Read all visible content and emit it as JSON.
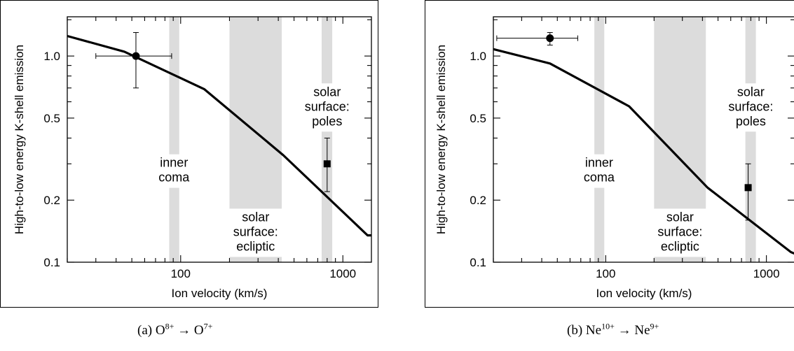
{
  "chart_data": [
    {
      "type": "line",
      "panel": "a",
      "xlabel": "Ion velocity (km/s)",
      "ylabel": "High-to-low energy K-shell emission",
      "xscale": "log",
      "yscale": "log",
      "xlim": [
        20,
        1500
      ],
      "ylim": [
        0.1,
        1.55
      ],
      "x_ticks": [
        100,
        1000
      ],
      "x_tick_labels": [
        "100",
        "1000"
      ],
      "y_ticks": [
        0.1,
        0.2,
        0.5,
        1.0
      ],
      "y_tick_labels": [
        "0.1",
        "0.2",
        "0.5",
        "1.0"
      ],
      "grid": false,
      "curve": {
        "x": [
          20,
          45,
          140,
          430,
          1420,
          1500
        ],
        "y": [
          1.25,
          1.05,
          0.69,
          0.33,
          0.135,
          0.135
        ]
      },
      "regions": [
        {
          "xmin": 85,
          "xmax": 98,
          "lines": [
            "inner",
            "coma"
          ],
          "label_x": 91,
          "label_y": 0.29
        },
        {
          "xmin": 200,
          "xmax": 420,
          "lines": [
            "solar",
            "surface:",
            "ecliptic"
          ],
          "label_x": 290,
          "label_y": 0.158
        },
        {
          "xmin": 740,
          "xmax": 860,
          "lines": [
            "solar",
            "surface:",
            "poles"
          ],
          "label_x": 800,
          "label_y": 0.64
        }
      ],
      "points": [
        {
          "marker": "circle",
          "x": 53,
          "y": 1.0,
          "xerr": [
            30,
            88
          ],
          "yerr": [
            0.7,
            1.3
          ]
        },
        {
          "marker": "square",
          "x": 800,
          "y": 0.3,
          "xerr": null,
          "yerr": [
            0.22,
            0.4
          ]
        }
      ]
    },
    {
      "type": "line",
      "panel": "b",
      "xlabel": "Ion velocity (km/s)",
      "ylabel": "High-to-low energy K-shell emission",
      "xscale": "log",
      "yscale": "log",
      "xlim": [
        20,
        1500
      ],
      "ylim": [
        0.1,
        1.55
      ],
      "x_ticks": [
        100,
        1000
      ],
      "x_tick_labels": [
        "100",
        "1000"
      ],
      "y_ticks": [
        0.1,
        0.2,
        0.5,
        1.0
      ],
      "y_tick_labels": [
        "0.1",
        "0.2",
        "0.5",
        "1.0"
      ],
      "grid": false,
      "curve": {
        "x": [
          20,
          45,
          140,
          430,
          1420,
          1500
        ],
        "y": [
          1.08,
          0.92,
          0.57,
          0.23,
          0.112,
          0.11
        ]
      },
      "regions": [
        {
          "xmin": 85,
          "xmax": 98,
          "lines": [
            "inner",
            "coma"
          ],
          "label_x": 91,
          "label_y": 0.29
        },
        {
          "xmin": 200,
          "xmax": 420,
          "lines": [
            "solar",
            "surface:",
            "ecliptic"
          ],
          "label_x": 290,
          "label_y": 0.158
        },
        {
          "xmin": 740,
          "xmax": 860,
          "lines": [
            "solar",
            "surface:",
            "poles"
          ],
          "label_x": 800,
          "label_y": 0.64
        }
      ],
      "points": [
        {
          "marker": "circle",
          "x": 45,
          "y": 1.22,
          "xerr": [
            21,
            67
          ],
          "yerr": [
            1.13,
            1.3
          ]
        },
        {
          "marker": "square",
          "x": 770,
          "y": 0.23,
          "xerr": null,
          "yerr": [
            0.16,
            0.3
          ]
        }
      ]
    }
  ],
  "captions": {
    "a": {
      "prefix": "(a) O",
      "ion1_sup": "8+",
      "arrow": " → O",
      "ion2_sup": "7+"
    },
    "b": {
      "prefix": "(b) Ne",
      "ion1_sup": "10+",
      "arrow": " → Ne",
      "ion2_sup": "9+"
    }
  }
}
